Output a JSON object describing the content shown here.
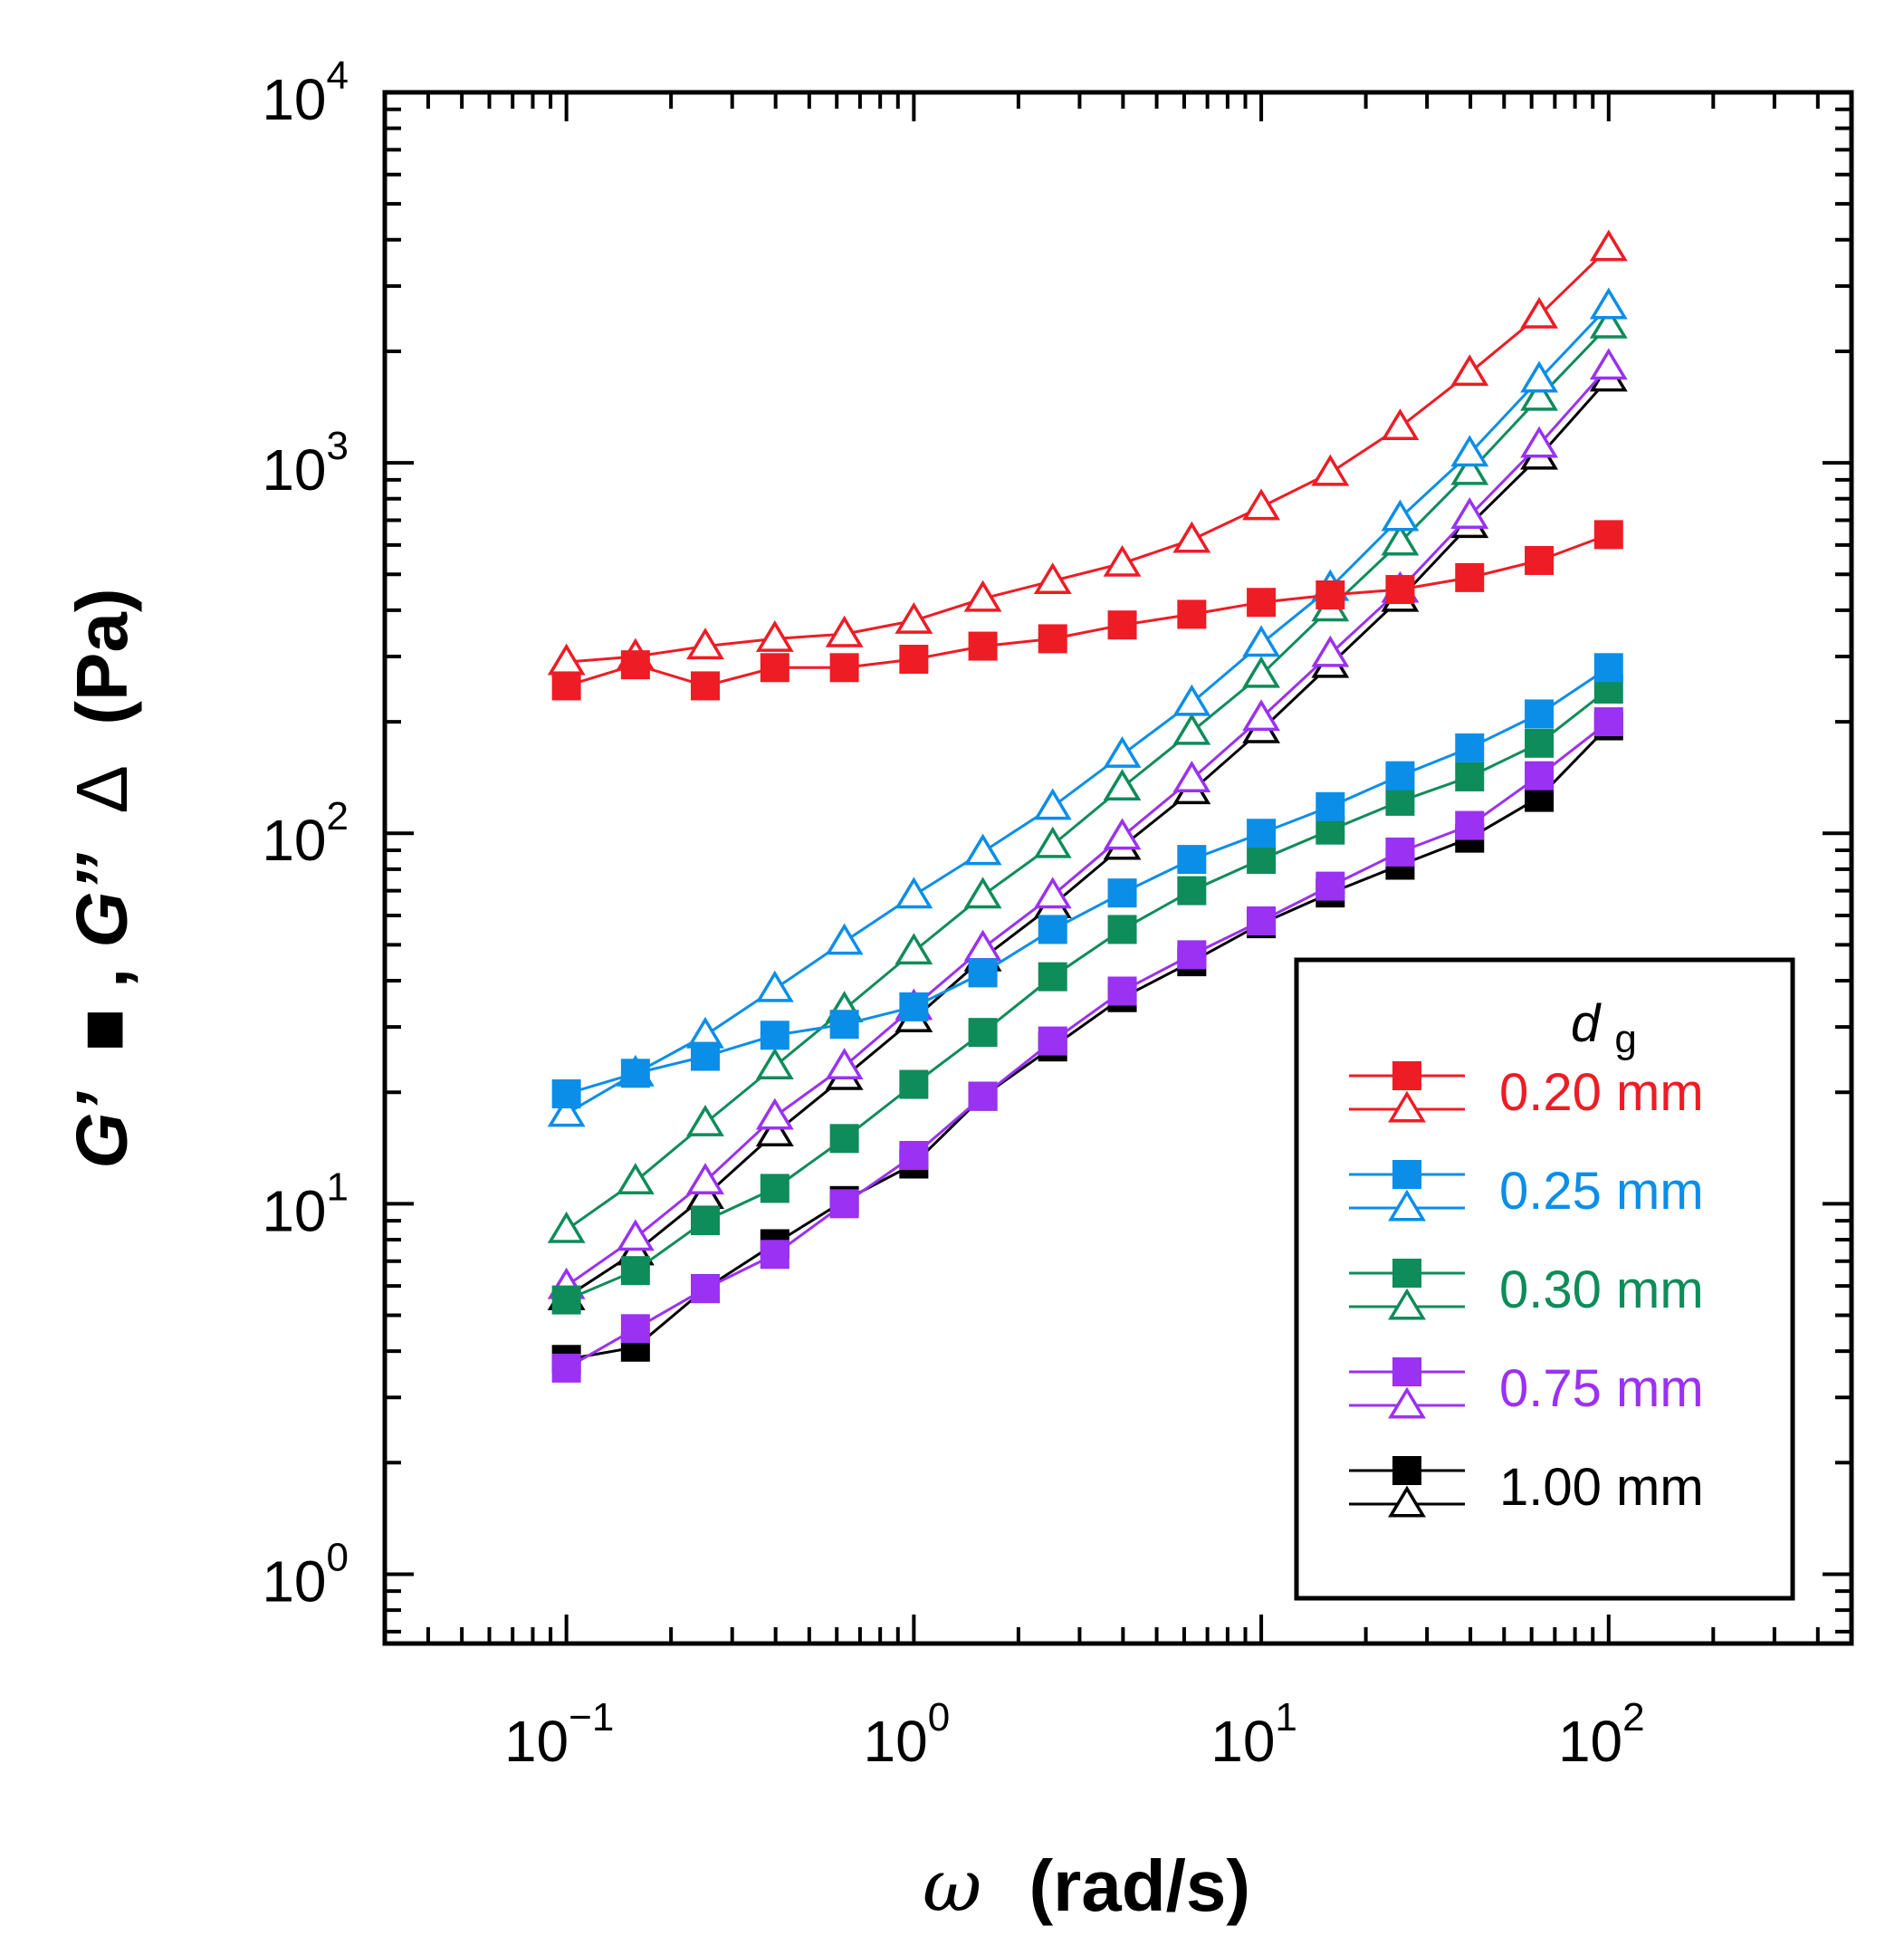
{
  "chart_data": {
    "type": "line",
    "x_scale": "log",
    "y_scale": "log",
    "xlim": [
      0.03,
      500
    ],
    "ylim": [
      0.65,
      10000
    ],
    "x_ticks": [
      {
        "value": 0.1,
        "base": "10",
        "exp": "−1"
      },
      {
        "value": 1,
        "base": "10",
        "exp": "0"
      },
      {
        "value": 10,
        "base": "10",
        "exp": "1"
      },
      {
        "value": 100,
        "base": "10",
        "exp": "2"
      }
    ],
    "y_ticks": [
      {
        "value": 1,
        "base": "10",
        "exp": "0"
      },
      {
        "value": 10,
        "base": "10",
        "exp": "1"
      },
      {
        "value": 100,
        "base": "10",
        "exp": "2"
      },
      {
        "value": 1000,
        "base": "10",
        "exp": "3"
      },
      {
        "value": 10000,
        "base": "10",
        "exp": "4"
      }
    ],
    "xlabel": {
      "symbol": "ω",
      "unit": "(rad/s)"
    },
    "ylabel": {
      "g1": "G’",
      "sep": ", ",
      "g2": "G’’",
      "unit": "(Pa)"
    },
    "legend": {
      "title_main": "d",
      "title_sub": "g",
      "position": "lower-right"
    },
    "x": [
      0.1,
      0.158,
      0.251,
      0.398,
      0.631,
      1.0,
      1.58,
      2.51,
      3.98,
      6.31,
      10.0,
      15.8,
      25.1,
      39.8,
      63.1,
      100.0
    ],
    "series": [
      {
        "label": "0.20 mm",
        "color": "#ee1c25",
        "G_prime": [
          250,
          285,
          250,
          280,
          280,
          295,
          320,
          335,
          365,
          390,
          420,
          440,
          455,
          490,
          545,
          640
        ],
        "G_double_prime": [
          290,
          300,
          320,
          335,
          345,
          375,
          430,
          480,
          535,
          620,
          760,
          940,
          1250,
          1750,
          2500,
          3800
        ]
      },
      {
        "label": "0.25 mm",
        "color": "#0b8ee8",
        "G_prime": [
          19.8,
          22.5,
          25,
          28.5,
          30.5,
          34,
          42,
          55,
          69,
          85,
          100,
          118,
          143,
          170,
          210,
          280
        ],
        "G_double_prime": [
          17.5,
          22.5,
          28.5,
          38,
          51,
          68,
          89,
          118,
          163,
          225,
          325,
          460,
          710,
          1060,
          1680,
          2650
        ]
      },
      {
        "label": "0.30 mm",
        "color": "#0e8c5a",
        "G_prime": [
          5.5,
          6.6,
          9,
          11,
          15,
          21,
          29,
          41,
          55,
          70,
          85,
          102,
          122,
          142,
          175,
          245
        ],
        "G_double_prime": [
          8.5,
          11.5,
          16.5,
          23.5,
          33.5,
          48,
          68,
          93,
          133,
          188,
          268,
          405,
          610,
          945,
          1500,
          2350
        ]
      },
      {
        "label": "0.75 mm",
        "color": "#9a31f3",
        "G_prime": [
          3.6,
          4.6,
          5.9,
          7.3,
          10,
          13.5,
          19.5,
          27.5,
          37.5,
          47,
          58,
          72,
          89,
          105,
          143,
          200
        ],
        "G_double_prime": [
          6,
          8.1,
          11.5,
          17.2,
          23.5,
          34,
          49,
          68,
          98,
          140,
          205,
          305,
          455,
          720,
          1120,
          1820
        ]
      },
      {
        "label": "1.00 mm",
        "color": "#000000",
        "G_prime": [
          3.8,
          4.1,
          5.9,
          7.8,
          10.2,
          12.8,
          19.5,
          26.5,
          36,
          45,
          57,
          69,
          82,
          97,
          125,
          195
        ],
        "G_double_prime": [
          5.6,
          7.4,
          10.5,
          15.5,
          22,
          31.5,
          46,
          64,
          92,
          130,
          190,
          285,
          430,
          680,
          1040,
          1690
        ]
      }
    ]
  }
}
